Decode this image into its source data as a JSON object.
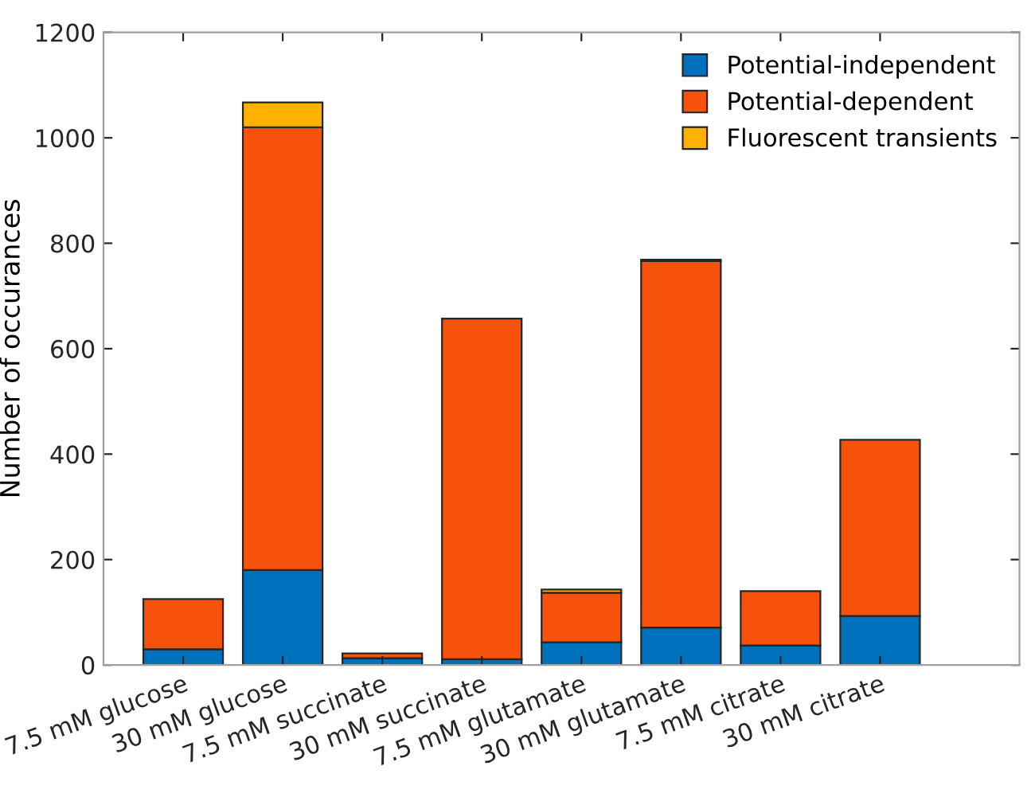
{
  "chart_data": {
    "type": "bar",
    "stacked": true,
    "ylabel": "Number of occurances",
    "categories": [
      "7.5 mM glucose",
      "30 mM glucose",
      "7.5 mM succinate",
      "30 mM succinate",
      "7.5 mM glutamate",
      "30 mM glutamate",
      "7.5 mM citrate",
      "30 mM citrate"
    ],
    "series": [
      {
        "name": "Potential-independent",
        "color": "#0072bd",
        "values": [
          30,
          180,
          13,
          11,
          43,
          71,
          37,
          93
        ]
      },
      {
        "name": "Potential-dependent",
        "color": "#f7520b",
        "values": [
          95,
          840,
          9,
          646,
          94,
          695,
          103,
          334
        ]
      },
      {
        "name": "Fluorescent transients",
        "color": "#ffb000",
        "values": [
          null,
          47,
          null,
          null,
          6,
          3,
          null,
          null
        ]
      }
    ],
    "ylim": [
      0,
      1200
    ],
    "yticks": [
      0,
      200,
      400,
      600,
      800,
      1000,
      1200
    ],
    "grid": false,
    "legend": "top right"
  }
}
